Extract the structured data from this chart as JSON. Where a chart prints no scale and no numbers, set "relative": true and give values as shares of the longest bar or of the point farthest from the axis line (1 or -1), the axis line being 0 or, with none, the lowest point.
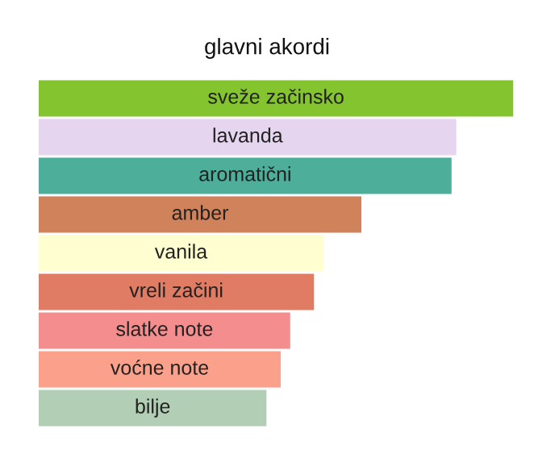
{
  "chart_data": {
    "type": "bar",
    "orientation": "horizontal",
    "relative": true,
    "title": "glavni akordi",
    "categories": [
      "sveže začinsko",
      "lavanda",
      "aromatični",
      "amber",
      "vanila",
      "vreli začini",
      "slatke note",
      "voćne note",
      "bilje"
    ],
    "values": [
      1,
      0.88,
      0.87,
      0.68,
      0.6,
      0.58,
      0.53,
      0.51,
      0.48
    ],
    "colors": [
      "#84c52f",
      "#e6d5ef",
      "#4dae9a",
      "#d0825a",
      "#fefed0",
      "#e07c64",
      "#f48d8e",
      "#fba08a",
      "#b2cfb6"
    ],
    "legend": false
  }
}
